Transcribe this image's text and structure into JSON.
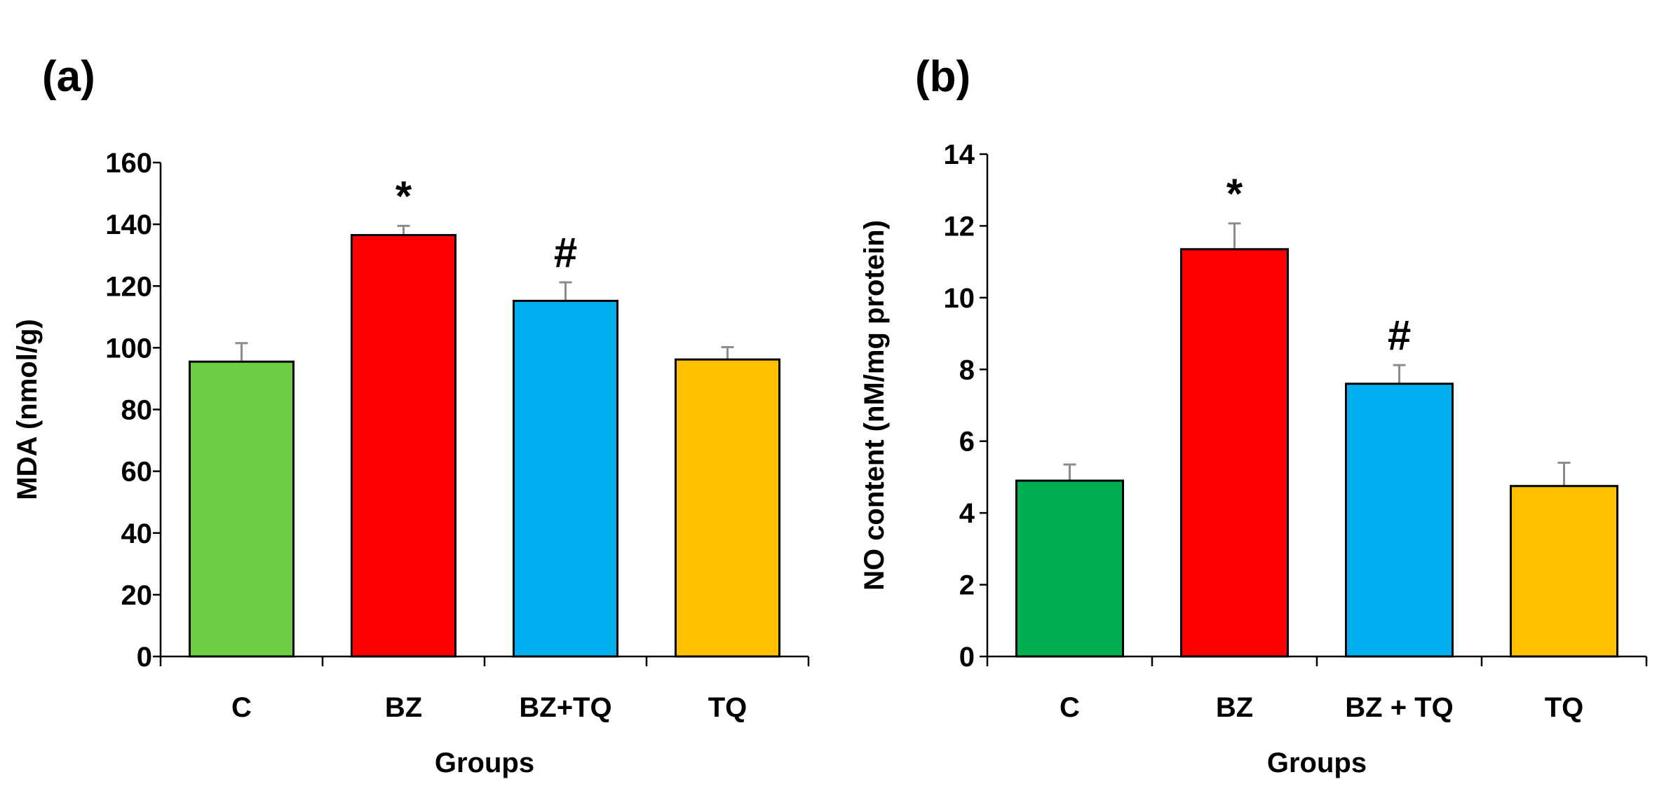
{
  "chart_data": [
    {
      "type": "bar",
      "panel_label": "(a)",
      "categories": [
        "C",
        "BZ",
        "BZ+TQ",
        "TQ"
      ],
      "values": [
        95.5,
        136.5,
        115.2,
        96.2
      ],
      "errors": [
        6,
        3,
        6,
        4
      ],
      "colors": [
        "#6dd044",
        "#ff0000",
        "#00b0f0",
        "#ffc000"
      ],
      "annotations": [
        "",
        "*",
        "#",
        ""
      ],
      "xlabel": "Groups",
      "ylabel": "MDA (nmol/g)",
      "ylim": [
        0,
        160
      ],
      "yticks": [
        "0",
        "20",
        "40",
        "60",
        "80",
        "100",
        "120",
        "140",
        "160"
      ],
      "grid": false
    },
    {
      "type": "bar",
      "panel_label": "(b)",
      "categories": [
        "C",
        "BZ",
        "BZ + TQ",
        "TQ"
      ],
      "values": [
        4.9,
        11.35,
        7.6,
        4.75
      ],
      "errors": [
        0.45,
        0.72,
        0.52,
        0.65
      ],
      "colors": [
        "#00b050",
        "#ff0000",
        "#00b0f0",
        "#ffc000"
      ],
      "annotations": [
        "",
        "*",
        "#",
        ""
      ],
      "xlabel": "Groups",
      "ylabel": "NO content (nM/mg protein)",
      "ylim": [
        0,
        14
      ],
      "yticks": [
        "0",
        "2",
        "4",
        "6",
        "8",
        "10",
        "12",
        "14"
      ],
      "grid": false
    }
  ]
}
